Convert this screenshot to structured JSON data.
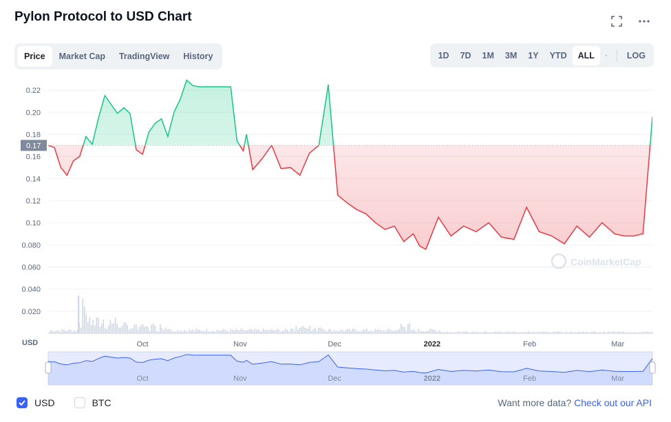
{
  "header": {
    "title": "Pylon Protocol to USD Chart",
    "icons": [
      "fullscreen-icon",
      "more-icon"
    ]
  },
  "tabs": [
    {
      "label": "Price",
      "active": true
    },
    {
      "label": "Market Cap",
      "active": false
    },
    {
      "label": "TradingView",
      "active": false
    },
    {
      "label": "History",
      "active": false
    }
  ],
  "ranges": [
    {
      "label": "1D",
      "active": false
    },
    {
      "label": "7D",
      "active": false
    },
    {
      "label": "1M",
      "active": false
    },
    {
      "label": "3M",
      "active": false
    },
    {
      "label": "1Y",
      "active": false
    },
    {
      "label": "YTD",
      "active": false
    },
    {
      "label": "ALL",
      "active": true
    }
  ],
  "log_label": "LOG",
  "footer": {
    "usd_label": "USD",
    "usd_checked": true,
    "btc_label": "BTC",
    "btc_checked": false,
    "more_text": "Want more data?",
    "more_link": "Check out our API"
  },
  "colors": {
    "up": "#16c784",
    "down": "#ea3943",
    "accent": "#3861fb",
    "navigator": "#3861fb"
  },
  "chart_data": {
    "type": "line",
    "title": "Pylon Protocol to USD Chart",
    "ylabel": "USD",
    "ylim": [
      0,
      0.23
    ],
    "yticks": [
      0.22,
      0.2,
      0.18,
      0.16,
      0.14,
      0.12,
      0.1,
      0.08,
      0.06,
      0.04,
      0.02
    ],
    "ytick_labels": [
      "0.22",
      "0.20",
      "0.18",
      "0.16",
      "0.14",
      "0.12",
      "0.10",
      "0.080",
      "0.060",
      "0.040",
      "0.020"
    ],
    "reference_price": 0.17,
    "reference_label": "0.17",
    "xlim": [
      "2021-09-01",
      "2022-03-12"
    ],
    "xticks": [
      {
        "date": "2021-10-01",
        "label": "Oct",
        "bold": false
      },
      {
        "date": "2021-11-01",
        "label": "Nov",
        "bold": false
      },
      {
        "date": "2021-12-01",
        "label": "Dec",
        "bold": false
      },
      {
        "date": "2022-01-01",
        "label": "2022",
        "bold": true
      },
      {
        "date": "2022-02-01",
        "label": "Feb",
        "bold": false
      },
      {
        "date": "2022-03-01",
        "label": "Mar",
        "bold": false
      }
    ],
    "watermark": "CoinMarketCap",
    "series": [
      {
        "x": [
          "2021-09-01",
          "2021-09-03",
          "2021-09-05",
          "2021-09-07",
          "2021-09-09",
          "2021-09-11",
          "2021-09-13",
          "2021-09-15",
          "2021-09-17",
          "2021-09-19",
          "2021-09-21",
          "2021-09-23",
          "2021-09-25",
          "2021-09-27",
          "2021-09-29",
          "2021-10-01",
          "2021-10-03",
          "2021-10-05",
          "2021-10-07",
          "2021-10-09",
          "2021-10-11",
          "2021-10-13",
          "2021-10-15",
          "2021-10-17",
          "2021-10-19",
          "2021-10-22",
          "2021-10-25",
          "2021-10-27",
          "2021-10-29",
          "2021-10-31",
          "2021-11-02",
          "2021-11-03",
          "2021-11-05",
          "2021-11-08",
          "2021-11-11",
          "2021-11-14",
          "2021-11-17",
          "2021-11-20",
          "2021-11-23",
          "2021-11-26",
          "2021-11-29",
          "2021-12-02",
          "2021-12-05",
          "2021-12-08",
          "2021-12-11",
          "2021-12-14",
          "2021-12-17",
          "2021-12-20",
          "2021-12-23",
          "2021-12-26",
          "2021-12-28",
          "2021-12-30",
          "2022-01-03",
          "2022-01-07",
          "2022-01-11",
          "2022-01-15",
          "2022-01-19",
          "2022-01-23",
          "2022-01-27",
          "2022-01-31",
          "2022-02-04",
          "2022-02-08",
          "2022-02-12",
          "2022-02-16",
          "2022-02-20",
          "2022-02-24",
          "2022-02-28",
          "2022-03-03",
          "2022-03-06",
          "2022-03-09",
          "2022-03-12"
        ],
        "y": [
          0.17,
          0.168,
          0.15,
          0.143,
          0.156,
          0.16,
          0.178,
          0.171,
          0.195,
          0.215,
          0.207,
          0.199,
          0.204,
          0.199,
          0.166,
          0.162,
          0.182,
          0.19,
          0.194,
          0.178,
          0.2,
          0.212,
          0.229,
          0.224,
          0.223,
          0.223,
          0.223,
          0.223,
          0.223,
          0.174,
          0.165,
          0.18,
          0.148,
          0.158,
          0.17,
          0.149,
          0.15,
          0.143,
          0.163,
          0.17,
          0.225,
          0.125,
          0.118,
          0.112,
          0.108,
          0.1,
          0.094,
          0.097,
          0.083,
          0.09,
          0.079,
          0.076,
          0.105,
          0.088,
          0.097,
          0.092,
          0.1,
          0.087,
          0.085,
          0.114,
          0.092,
          0.088,
          0.081,
          0.097,
          0.087,
          0.1,
          0.09,
          0.088,
          0.088,
          0.09,
          0.196
        ]
      }
    ]
  },
  "navigator": {
    "xticks": [
      "Oct",
      "Nov",
      "Dec",
      "2022",
      "Feb",
      "Mar"
    ]
  }
}
